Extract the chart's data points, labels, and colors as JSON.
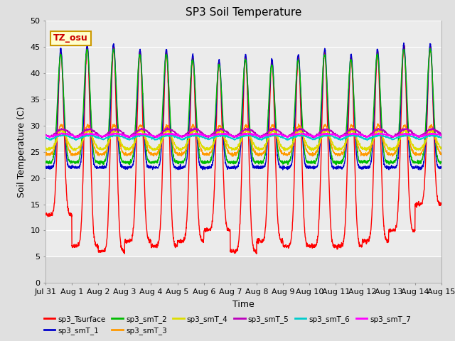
{
  "title": "SP3 Soil Temperature",
  "ylabel": "Soil Temperature (C)",
  "xlabel": "Time",
  "tz_label": "TZ_osu",
  "ylim": [
    0,
    50
  ],
  "yticks": [
    0,
    5,
    10,
    15,
    20,
    25,
    30,
    35,
    40,
    45,
    50
  ],
  "x_tick_labels": [
    "Jul 31",
    "Aug 1",
    "Aug 2",
    "Aug 3",
    "Aug 4",
    "Aug 5",
    "Aug 6",
    "Aug 7",
    "Aug 8",
    "Aug 9",
    "Aug 10",
    "Aug 11",
    "Aug 12",
    "Aug 13",
    "Aug 14",
    "Aug 15"
  ],
  "legend_entries": [
    {
      "label": "sp3_Tsurface",
      "color": "#FF0000"
    },
    {
      "label": "sp3_smT_1",
      "color": "#0000CC"
    },
    {
      "label": "sp3_smT_2",
      "color": "#00BB00"
    },
    {
      "label": "sp3_smT_3",
      "color": "#FF9900"
    },
    {
      "label": "sp3_smT_4",
      "color": "#DDDD00"
    },
    {
      "label": "sp3_smT_5",
      "color": "#BB00BB"
    },
    {
      "label": "sp3_smT_6",
      "color": "#00CCCC"
    },
    {
      "label": "sp3_smT_7",
      "color": "#FF00FF"
    }
  ],
  "background_color": "#E0E0E0",
  "plot_bg_color": "#E0E0E0",
  "plot_upper_bg": "#F0F0F0",
  "n_days": 15,
  "points_per_day": 144
}
